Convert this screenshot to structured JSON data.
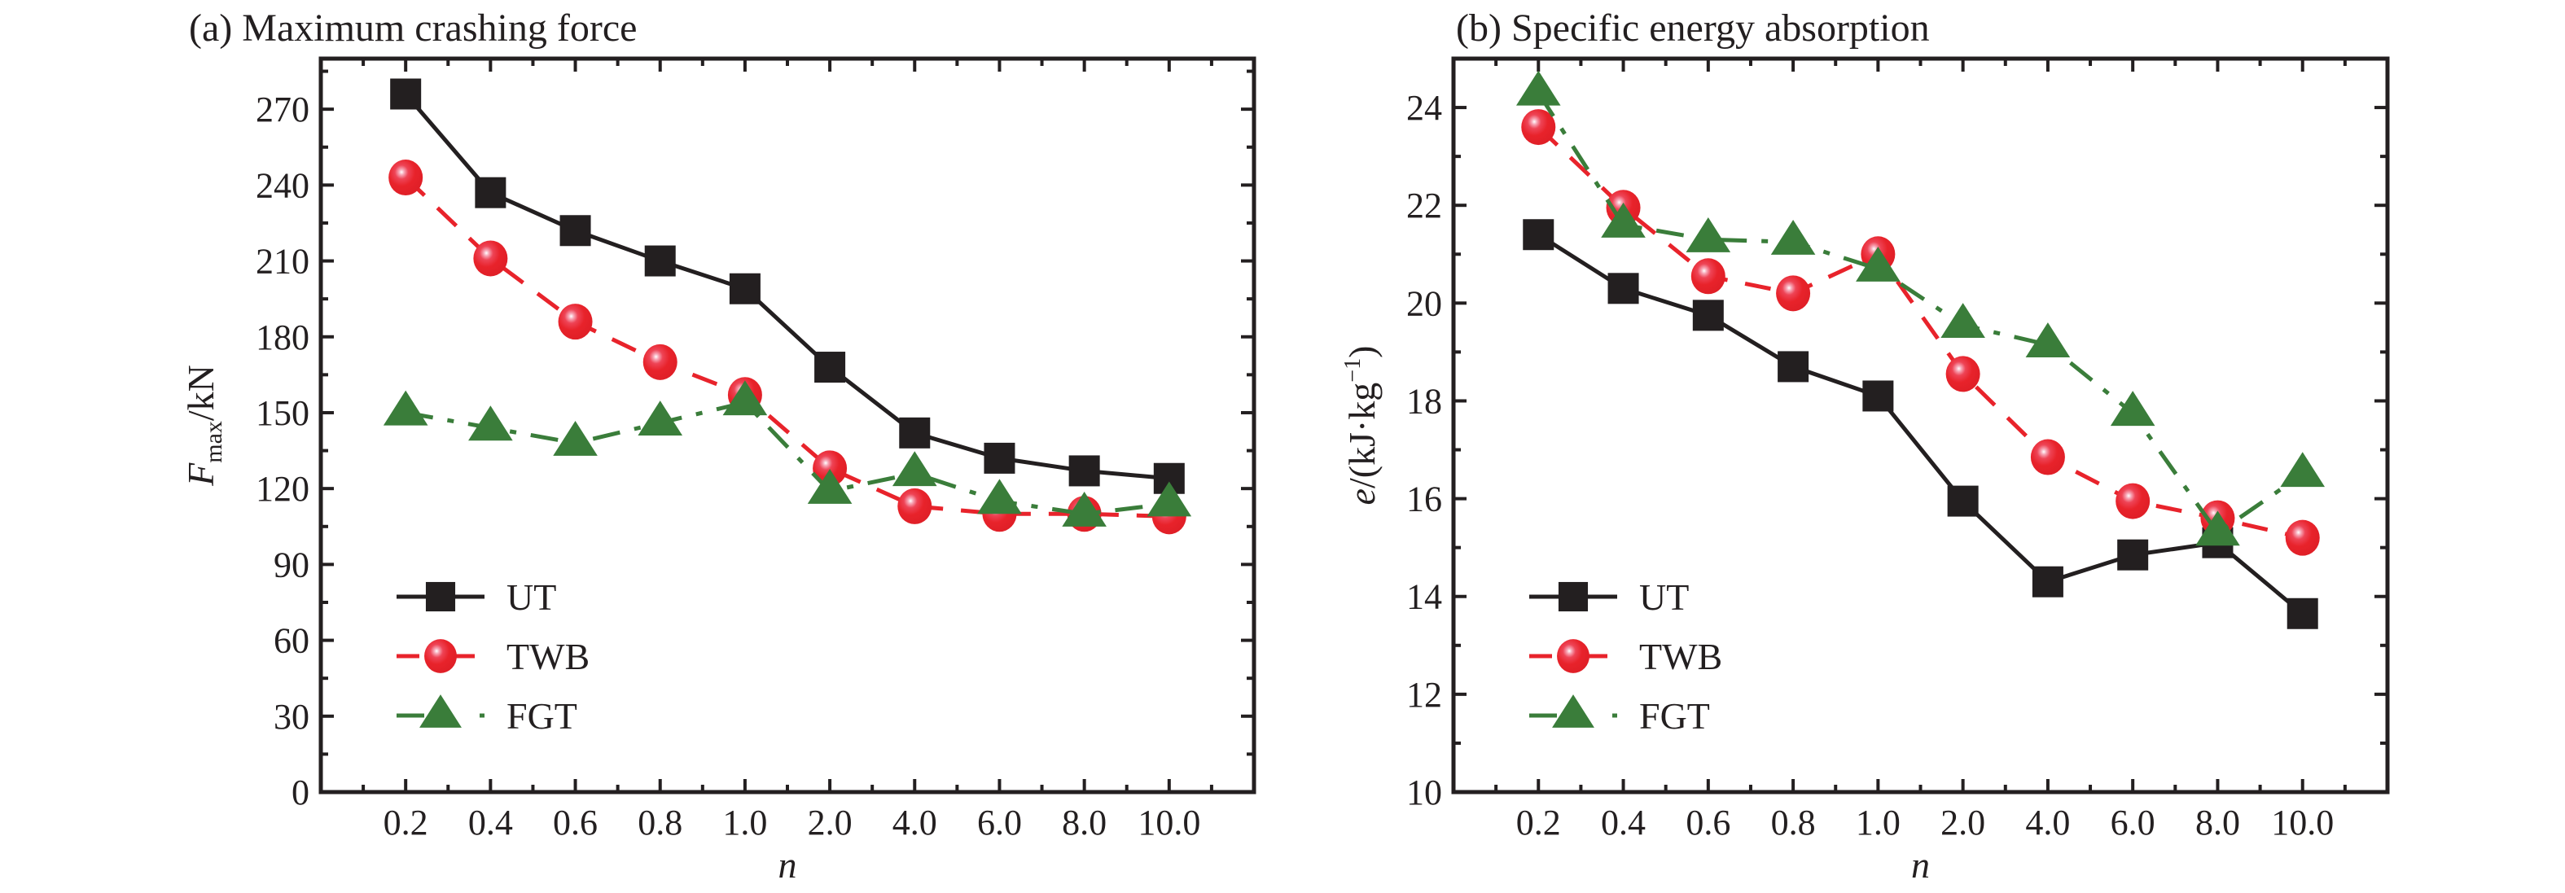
{
  "figure": {
    "colors": {
      "UT": "#231f20",
      "TWB": "#e8232b",
      "FGT": "#3a7d3a",
      "axis": "#231f20"
    }
  },
  "chart_data": [
    {
      "type": "line",
      "title": "(a) Maximum crashing force",
      "xlabel": "n",
      "ylabel": "F_max/kN",
      "ylabel_main": "F",
      "ylabel_sub": "max",
      "ylabel_rest": "/kN",
      "categories": [
        "0.2",
        "0.4",
        "0.6",
        "0.8",
        "1.0",
        "2.0",
        "4.0",
        "6.0",
        "8.0",
        "10.0"
      ],
      "xlim": [
        0,
        11
      ],
      "ylim": [
        0,
        290
      ],
      "yticks": [
        0,
        30,
        60,
        90,
        120,
        150,
        180,
        210,
        240,
        270
      ],
      "yminor_step": 15,
      "grid": false,
      "legend_position": "bottom-left",
      "series": [
        {
          "name": "UT",
          "marker": "square",
          "line": "solid",
          "values": [
            276,
            237,
            222,
            210,
            199,
            168,
            142,
            132,
            127,
            124
          ]
        },
        {
          "name": "TWB",
          "marker": "circle",
          "line": "dashed",
          "values": [
            243,
            211,
            186,
            170,
            157,
            128,
            113,
            110,
            110,
            109
          ]
        },
        {
          "name": "FGT",
          "marker": "triangle",
          "line": "dash-dot",
          "values": [
            150,
            144,
            138,
            146,
            154,
            119,
            126,
            115,
            110,
            114
          ]
        }
      ]
    },
    {
      "type": "line",
      "title": "(b)  Specific energy absorption",
      "xlabel": "n",
      "ylabel": "e/(kJ·kg⁻¹)",
      "ylabel_main": "e",
      "ylabel_rest": "/(kJ·kg",
      "ylabel_sup": "−1",
      "ylabel_end": ")",
      "categories": [
        "0.2",
        "0.4",
        "0.6",
        "0.8",
        "1.0",
        "2.0",
        "4.0",
        "6.0",
        "8.0",
        "10.0"
      ],
      "xlim": [
        0,
        11
      ],
      "ylim": [
        10,
        25
      ],
      "yticks": [
        10,
        12,
        14,
        16,
        18,
        20,
        22,
        24
      ],
      "yminor_step": 1,
      "grid": false,
      "legend_position": "bottom-left",
      "series": [
        {
          "name": "UT",
          "marker": "square",
          "line": "solid",
          "values": [
            21.4,
            20.3,
            19.75,
            18.7,
            18.1,
            15.95,
            14.3,
            14.85,
            15.1,
            13.65
          ]
        },
        {
          "name": "TWB",
          "marker": "circle",
          "line": "dashed",
          "values": [
            23.6,
            21.95,
            20.55,
            20.2,
            21.0,
            18.55,
            16.85,
            15.95,
            15.6,
            15.2
          ]
        },
        {
          "name": "FGT",
          "marker": "triangle",
          "line": "dash-dot",
          "values": [
            24.3,
            21.6,
            21.3,
            21.25,
            20.7,
            19.55,
            19.15,
            17.75,
            15.3,
            16.5
          ]
        }
      ]
    }
  ]
}
